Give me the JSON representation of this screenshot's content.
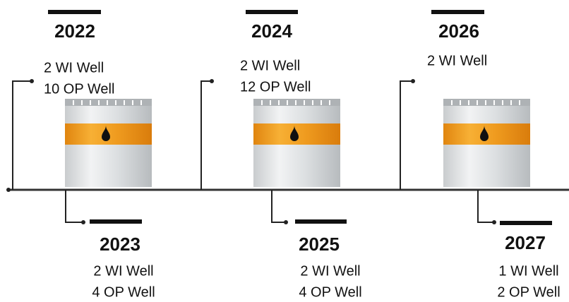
{
  "milestones": [
    {
      "year": "2022",
      "lines": [
        "2 WI Well",
        "10 OP Well"
      ]
    },
    {
      "year": "2023",
      "lines": [
        "2 WI Well",
        "4 OP Well"
      ]
    },
    {
      "year": "2024",
      "lines": [
        "2 WI Well",
        "12 OP Well"
      ]
    },
    {
      "year": "2025",
      "lines": [
        "2 WI Well",
        "4 OP Well"
      ]
    },
    {
      "year": "2026",
      "lines": [
        "2 WI Well"
      ]
    },
    {
      "year": "2027",
      "lines": [
        "1 WI Well",
        "2 OP Well"
      ]
    }
  ]
}
